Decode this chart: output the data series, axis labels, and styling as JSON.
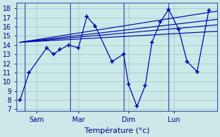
{
  "background_color": "#cce8e8",
  "grid_color": "#aacccc",
  "line_color": "#0000aa",
  "xlabel": "Température (°c)",
  "ylabel_ticks": [
    7,
    8,
    9,
    10,
    11,
    12,
    13,
    14,
    15,
    16,
    17,
    18
  ],
  "ylim": [
    6.8,
    18.6
  ],
  "xlim": [
    -0.2,
    11.8
  ],
  "day_labels": [
    "Sam",
    "Mar",
    "Dim",
    "Lun"
  ],
  "day_positions": [
    1.0,
    3.5,
    6.5,
    9.2
  ],
  "vlines": [
    0.3,
    3.0,
    6.2,
    8.9
  ],
  "series_x": [
    0.0,
    0.55,
    1.6,
    2.0,
    2.4,
    2.9,
    3.5,
    4.0,
    4.5,
    5.5,
    6.2,
    6.5,
    7.0,
    7.5,
    7.9,
    8.4,
    8.9,
    9.5,
    10.0,
    10.6,
    11.3
  ],
  "series_y": [
    8.0,
    11.0,
    13.7,
    13.0,
    13.5,
    14.0,
    13.7,
    17.1,
    16.1,
    12.2,
    13.0,
    9.7,
    7.3,
    9.6,
    14.3,
    16.5,
    17.9,
    15.7,
    12.2,
    11.1,
    17.8
  ],
  "regression_lines": [
    {
      "x0": 0.0,
      "y0": 14.3,
      "x1": 11.8,
      "y1": 17.7
    },
    {
      "x0": 0.0,
      "y0": 14.3,
      "x1": 11.8,
      "y1": 16.8
    },
    {
      "x0": 0.0,
      "y0": 14.3,
      "x1": 11.8,
      "y1": 16.2
    },
    {
      "x0": 0.0,
      "y0": 14.3,
      "x1": 11.8,
      "y1": 15.5
    }
  ],
  "xlabel_fontsize": 8,
  "tick_fontsize": 7
}
